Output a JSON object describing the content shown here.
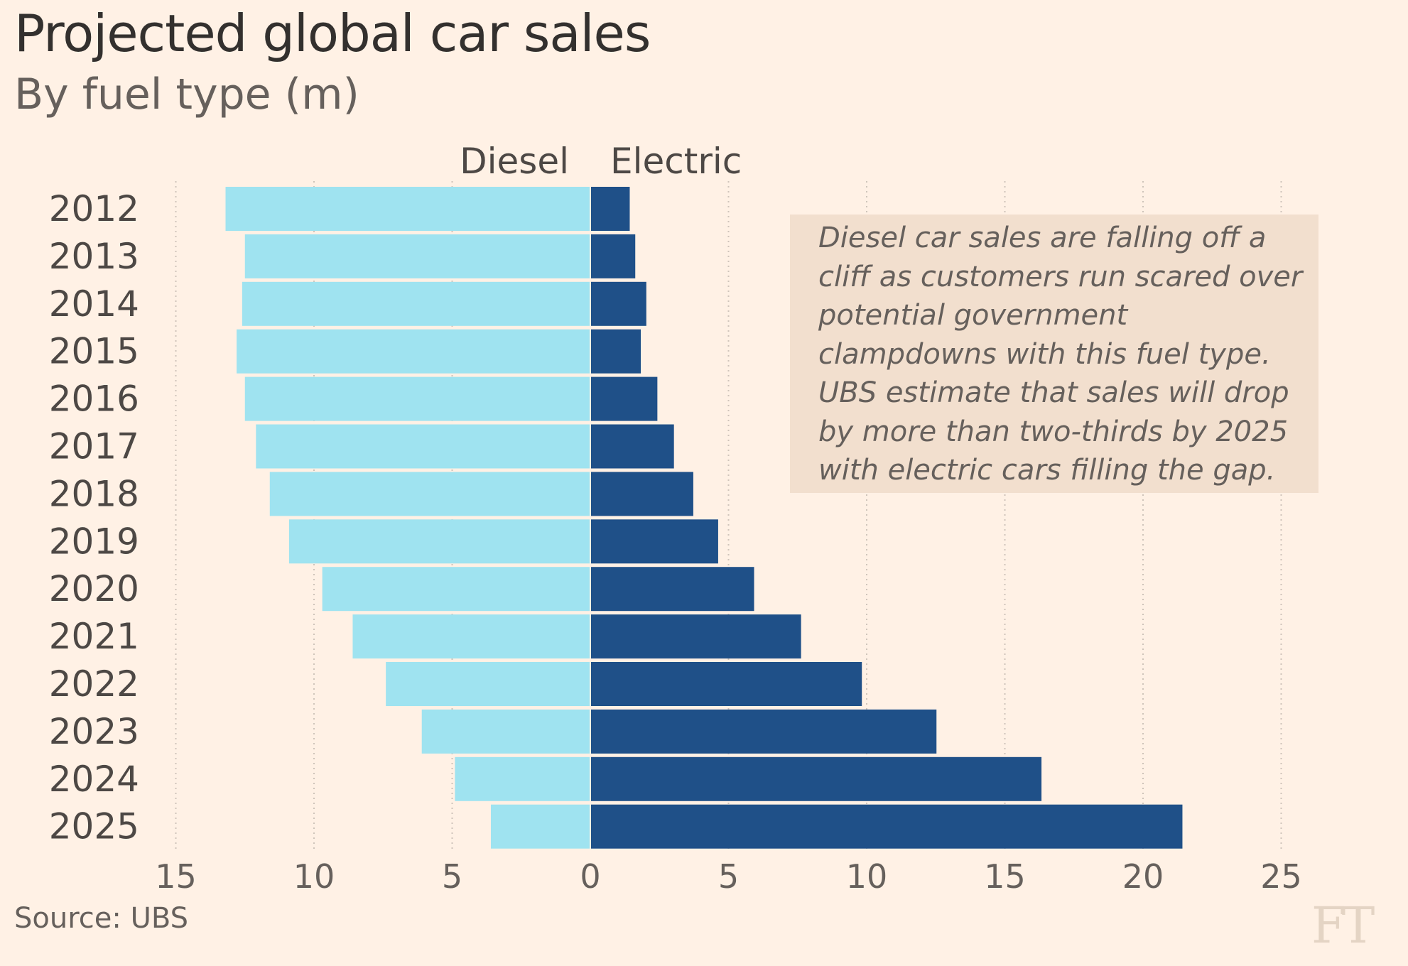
{
  "header": {
    "title": "Projected global car sales",
    "subtitle": "By fuel type (m)"
  },
  "annotation": "Diesel car sales are falling off a cliff as customers run scared over potential government clampdowns with this fuel type. UBS estimate that sales will drop by more than two-thirds by 2025 with electric cars filling the gap.",
  "footer": {
    "source": "Source: UBS",
    "logo": "FT"
  },
  "colors": {
    "background": "#fff1e5",
    "diesel": "#9fe3f0",
    "electric": "#1f5088",
    "grid": "#cfc4ba",
    "annotation_bg": "#f2dfce"
  },
  "chart_data": {
    "type": "bar",
    "orientation": "horizontal-diverging",
    "title": "Projected global car sales",
    "subtitle": "By fuel type (m)",
    "categories": [
      "2012",
      "2013",
      "2014",
      "2015",
      "2016",
      "2017",
      "2018",
      "2019",
      "2020",
      "2021",
      "2022",
      "2023",
      "2024",
      "2025"
    ],
    "series": [
      {
        "name": "Diesel",
        "direction": "left",
        "values": [
          13.2,
          12.5,
          12.6,
          12.8,
          12.5,
          12.1,
          11.6,
          10.9,
          9.7,
          8.6,
          7.4,
          6.1,
          4.9,
          3.6
        ]
      },
      {
        "name": "Electric",
        "direction": "right",
        "values": [
          1.4,
          1.6,
          2.0,
          1.8,
          2.4,
          3.0,
          3.7,
          4.6,
          5.9,
          7.6,
          9.8,
          12.5,
          16.3,
          21.4
        ]
      }
    ],
    "xlim": [
      -15,
      25
    ],
    "xticks": [
      -15,
      -10,
      -5,
      0,
      5,
      10,
      15,
      20,
      25
    ],
    "xtick_labels": [
      "15",
      "10",
      "5",
      "0",
      "5",
      "10",
      "15",
      "20",
      "25"
    ],
    "grid": "vertical-dotted",
    "legend": "series labels above bars"
  }
}
